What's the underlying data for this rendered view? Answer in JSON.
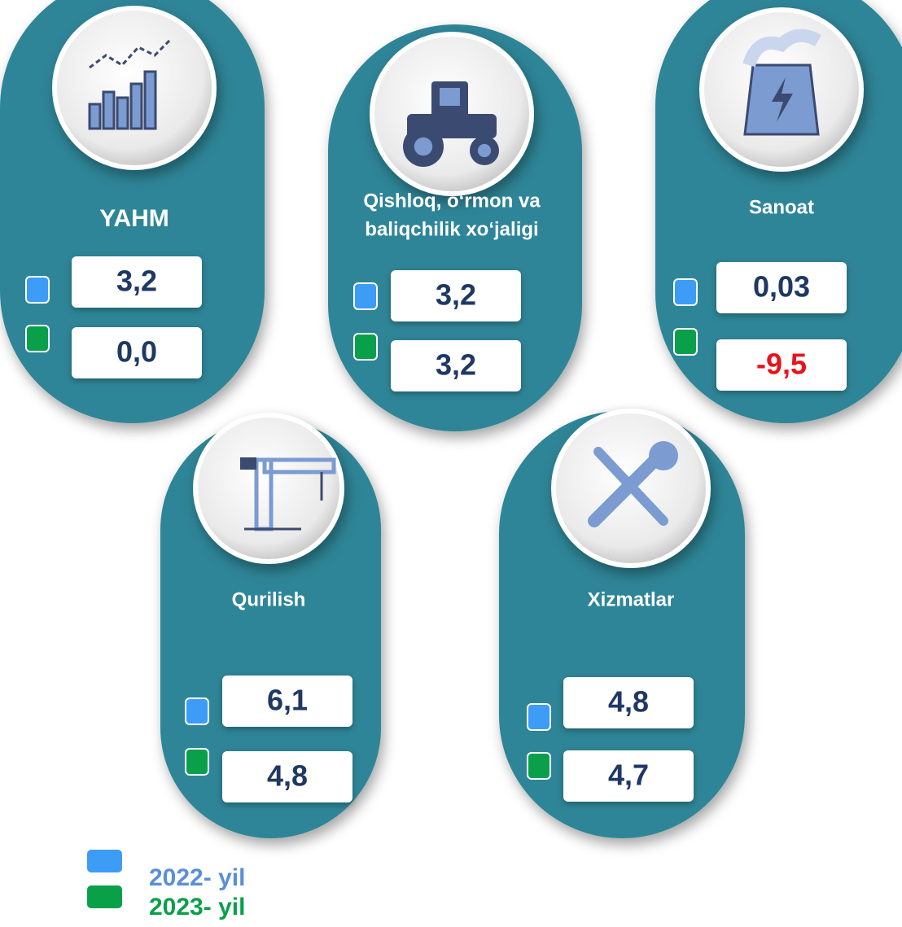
{
  "cards": [
    {
      "title": [
        "YAHM"
      ],
      "values": [
        "3,2",
        "0,0"
      ]
    },
    {
      "title": [
        "Qishloq, o‘rmon va",
        "baliqchilik xo‘jaligi"
      ],
      "values": [
        "3,2",
        "3,2"
      ]
    },
    {
      "title": [
        "Sanoat"
      ],
      "values": [
        "0,03",
        "-9,5"
      ]
    },
    {
      "title": [
        "Qurilish"
      ],
      "values": [
        "6,1",
        "4,8"
      ]
    },
    {
      "title": [
        "Xizmatlar"
      ],
      "values": [
        "4,8",
        "4,7"
      ]
    }
  ],
  "legend": [
    {
      "label": "2022- yil",
      "color": "#3d9cf5"
    },
    {
      "label": "2023- yil",
      "color": "#0aa04a"
    }
  ]
}
